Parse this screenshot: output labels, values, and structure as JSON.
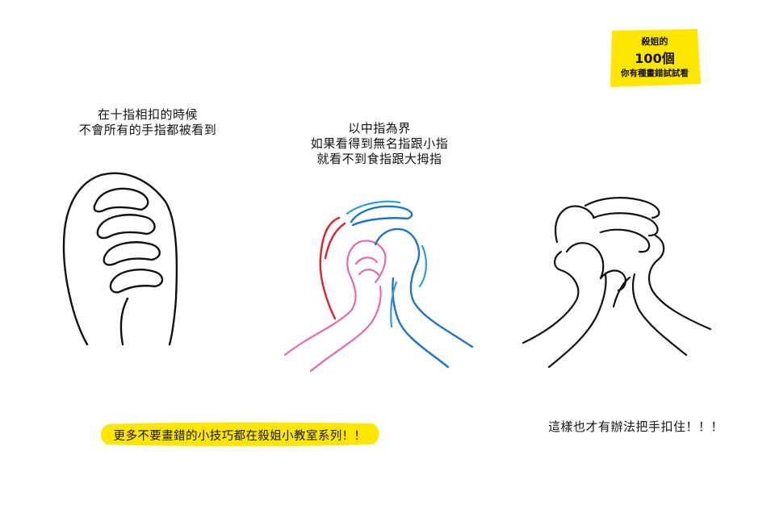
{
  "badge": {
    "line1": "殺姐的",
    "line2": "100個",
    "line3": "你有種畫錯試試看",
    "color": "#ffe600"
  },
  "captions": {
    "left": [
      "在十指相扣的時候",
      "不會所有的手指都被看到"
    ],
    "middle": [
      "以中指為界",
      "如果看得到無名指跟小指",
      "就看不到食指跟大拇指"
    ],
    "right": "這樣也才有辦法把手扣住！！！"
  },
  "banner": {
    "text": "更多不要畫錯的小技巧都在殺姐小教室系列！！",
    "color": "#ffe600"
  },
  "colors": {
    "line_black": "#111111",
    "line_red": "#d9232e",
    "line_pink": "#e76aa8",
    "line_blue": "#1e74c8",
    "line_cyan": "#2e9be0"
  }
}
